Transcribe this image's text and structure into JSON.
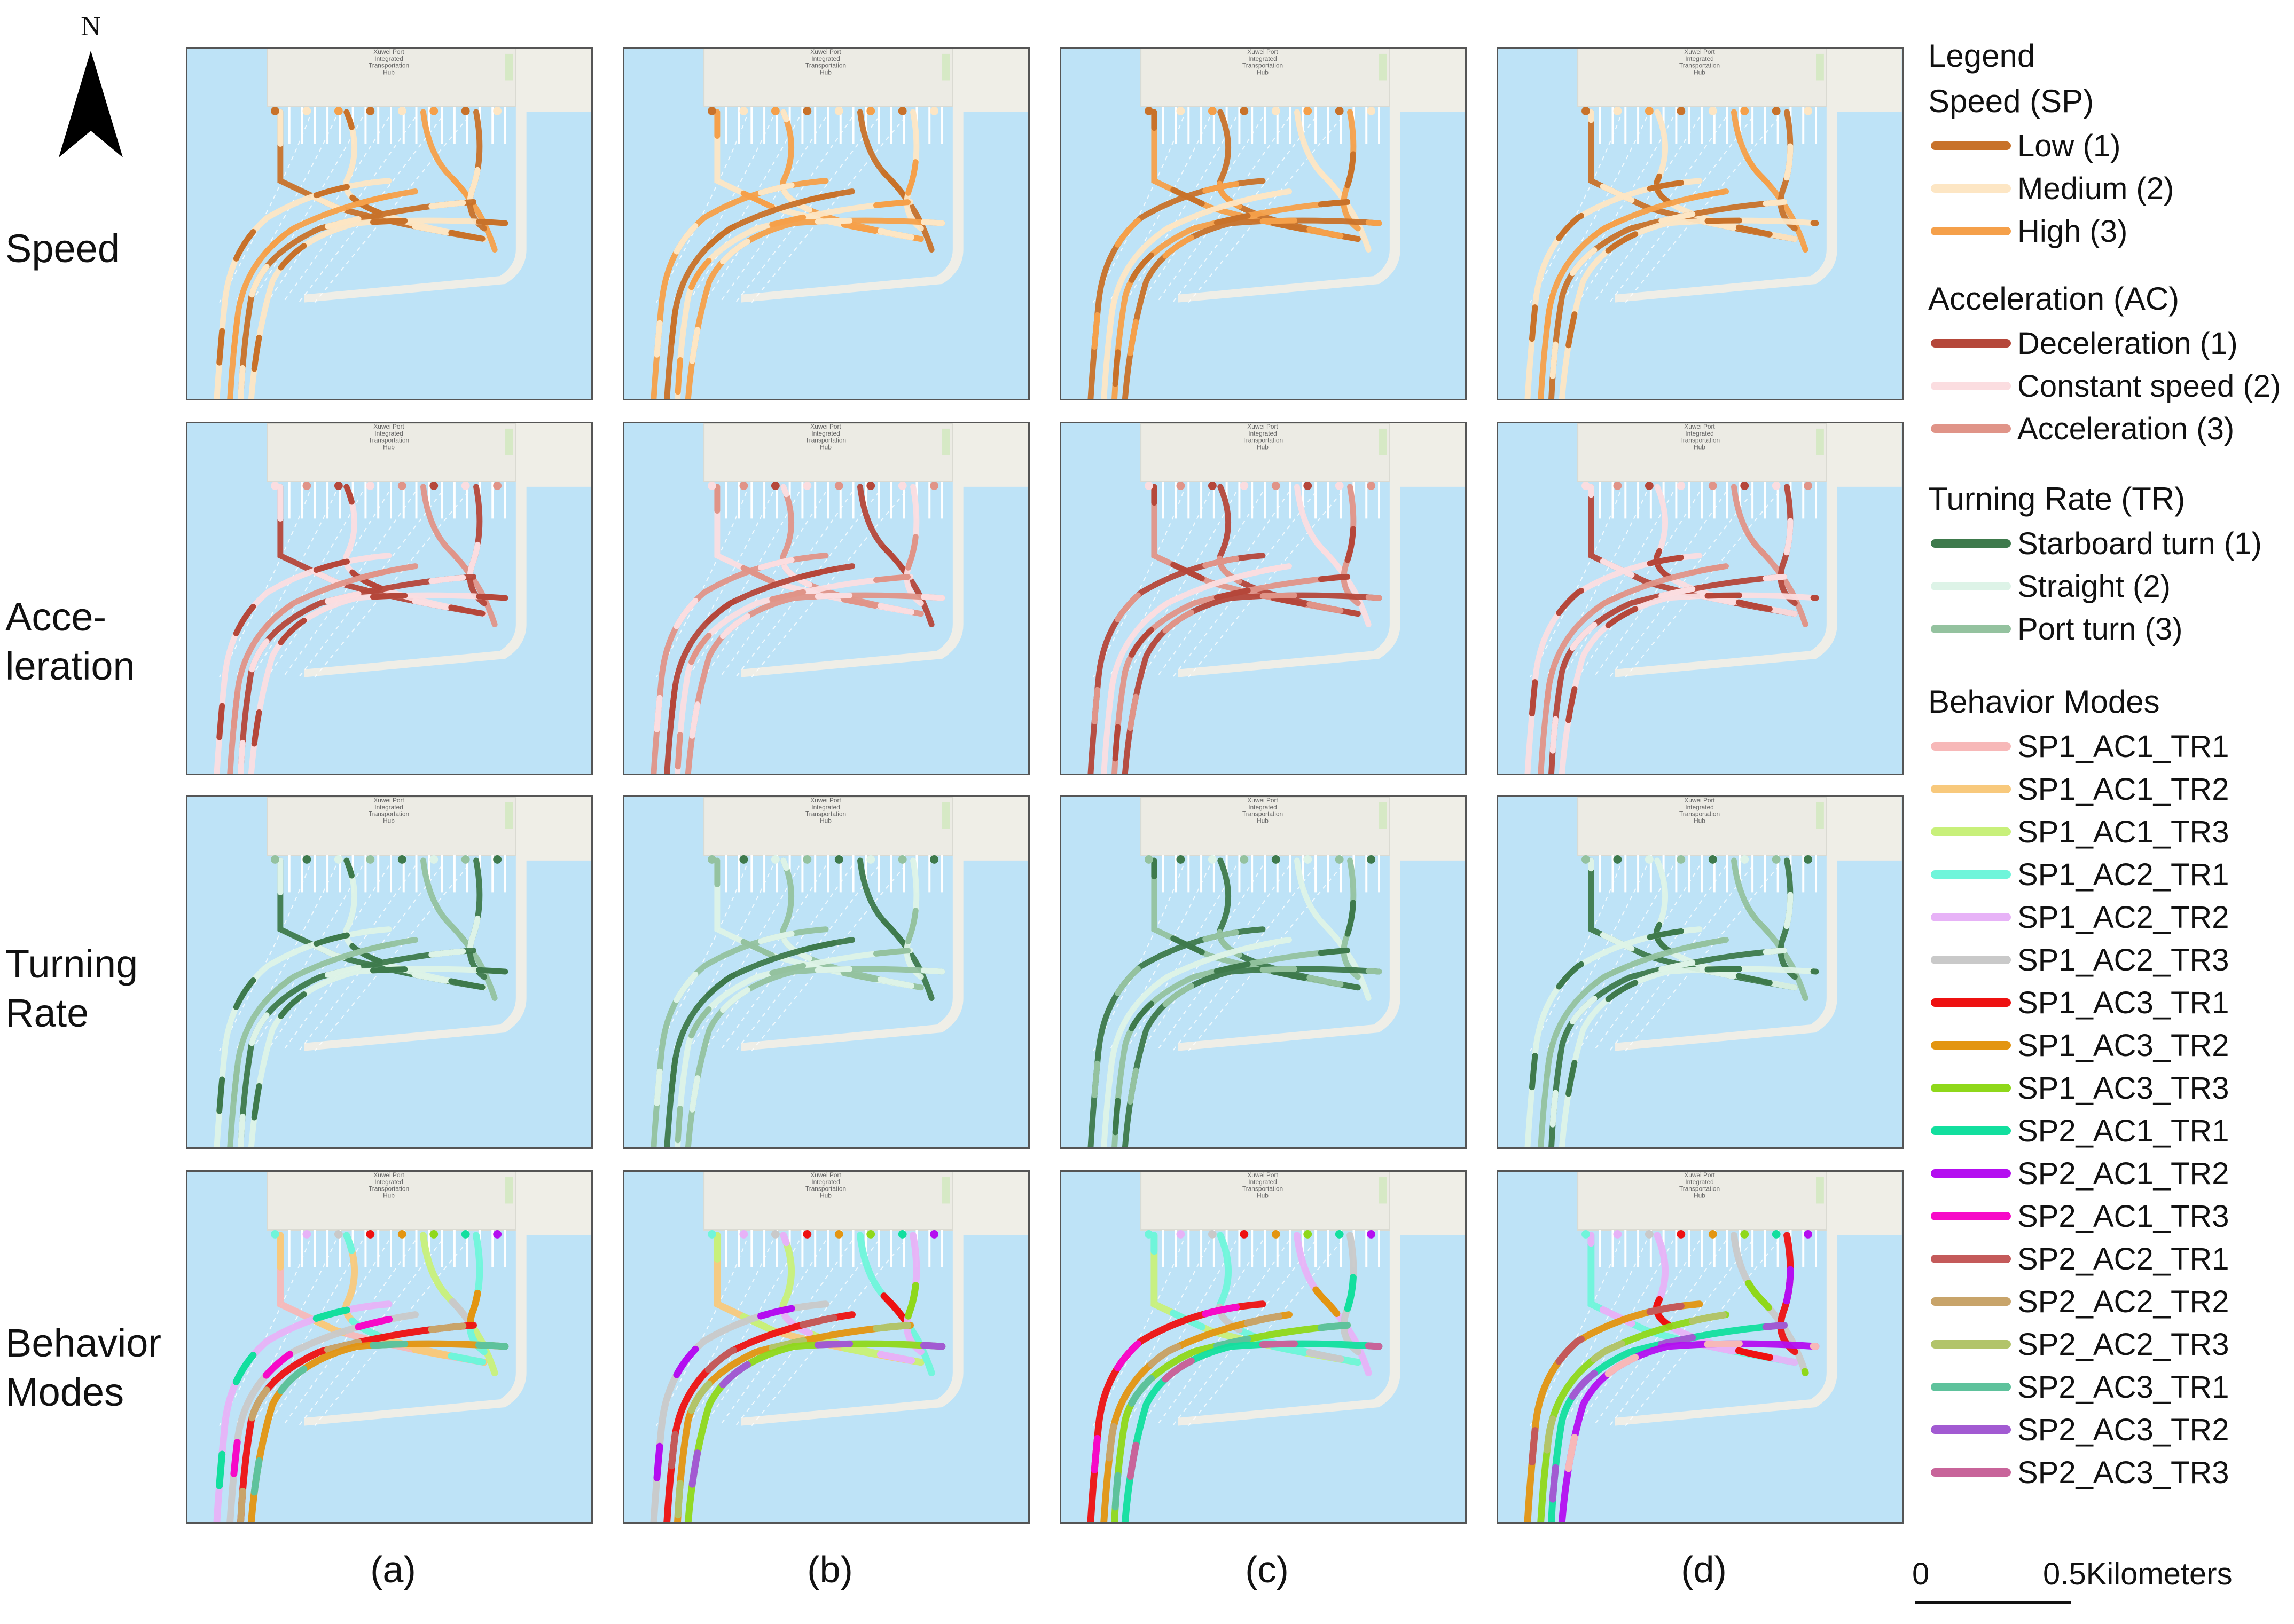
{
  "north_arrow": {
    "letter": "N"
  },
  "rows": [
    {
      "id": "speed",
      "label": "Speed"
    },
    {
      "id": "acceleration",
      "label": "Acce-\nleration"
    },
    {
      "id": "turning",
      "label": "Turning\nRate"
    },
    {
      "id": "behavior",
      "label": "Behavior\nModes"
    }
  ],
  "columns": [
    "(a)",
    "(b)",
    "(c)",
    "(d)"
  ],
  "map_label": "Xuwei Port\nIntegrated\nTransportation\nHub",
  "legend": {
    "title": "Legend",
    "groups": [
      {
        "title": "Speed (SP)",
        "items": [
          {
            "label": "Low (1)",
            "color": "#c8722a"
          },
          {
            "label": "Medium (2)",
            "color": "#fde6c4"
          },
          {
            "label": "High (3)",
            "color": "#f5a04a"
          }
        ]
      },
      {
        "title": "Acceleration (AC)",
        "items": [
          {
            "label": "Deceleration (1)",
            "color": "#b5473a"
          },
          {
            "label": "Constant speed (2)",
            "color": "#fbdde0"
          },
          {
            "label": "Acceleration (3)",
            "color": "#e09488"
          }
        ]
      },
      {
        "title": "Turning Rate (TR)",
        "items": [
          {
            "label": "Starboard turn (1)",
            "color": "#3e7a4c"
          },
          {
            "label": "Straight (2)",
            "color": "#ddf3e7"
          },
          {
            "label": "Port turn (3)",
            "color": "#94c29f"
          }
        ]
      },
      {
        "title": "Behavior Modes",
        "items": [
          {
            "label": "SP1_AC1_TR1",
            "color": "#f7b8b8"
          },
          {
            "label": "SP1_AC1_TR2",
            "color": "#f8c97c"
          },
          {
            "label": "SP1_AC1_TR3",
            "color": "#c8f07a"
          },
          {
            "label": "SP1_AC2_TR1",
            "color": "#6ff5da"
          },
          {
            "label": "SP1_AC2_TR2",
            "color": "#e7b2f7"
          },
          {
            "label": "SP1_AC2_TR3",
            "color": "#c9c9c9"
          },
          {
            "label": "SP1_AC3_TR1",
            "color": "#ee1111"
          },
          {
            "label": "SP1_AC3_TR2",
            "color": "#e39511"
          },
          {
            "label": "SP1_AC3_TR3",
            "color": "#8fd81a"
          },
          {
            "label": "SP2_AC1_TR1",
            "color": "#12df9e"
          },
          {
            "label": "SP2_AC1_TR2",
            "color": "#b40ef0"
          },
          {
            "label": "SP2_AC1_TR3",
            "color": "#f70ac8"
          },
          {
            "label": "SP2_AC2_TR1",
            "color": "#c45a5a"
          },
          {
            "label": "SP2_AC2_TR2",
            "color": "#c8a46a"
          },
          {
            "label": "SP2_AC2_TR3",
            "color": "#b2c46a"
          },
          {
            "label": "SP2_AC3_TR1",
            "color": "#5ec29c"
          },
          {
            "label": "SP2_AC3_TR2",
            "color": "#a25ad2"
          },
          {
            "label": "SP2_AC3_TR3",
            "color": "#c8649a"
          }
        ]
      }
    ]
  },
  "scale_bar": {
    "start": "0",
    "end": "0.5",
    "unit": "Kilometers"
  },
  "colors": {
    "water": "#bee3f7",
    "land": "#efeee7",
    "pier": "#ffffff",
    "guide_line": "#ffffff"
  }
}
